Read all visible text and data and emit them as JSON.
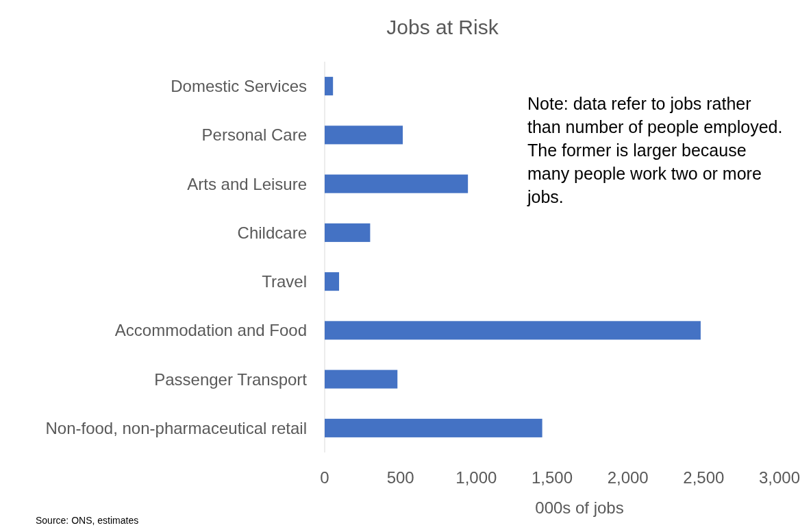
{
  "chart_data": {
    "type": "bar",
    "orientation": "horizontal",
    "title": "Jobs at Risk",
    "xlabel": "000s of jobs",
    "categories": [
      "Domestic Services",
      "Personal Care",
      "Arts and Leisure",
      "Childcare",
      "Travel",
      "Accommodation and Food",
      "Passenger Transport",
      "Non-food, non-pharmaceutical retail"
    ],
    "values": [
      55,
      515,
      945,
      300,
      95,
      2480,
      480,
      1435
    ],
    "color": "#4472c4",
    "xlim": [
      0,
      3000
    ],
    "xticks": [
      0,
      {
        "value": 500,
        "label": "500"
      },
      {
        "value": 1000,
        "label": "1,000"
      },
      {
        "value": 1500,
        "label": "1,500"
      },
      {
        "value": 2000,
        "label": "2,000"
      },
      {
        "value": 2500,
        "label": "2,500"
      },
      {
        "value": 3000,
        "label": "3,000"
      }
    ],
    "grid": false,
    "annotations": [
      "Note: data refer to jobs rather than number of people employed.  The former is larger because many people work two or more jobs.",
      "Source: ONS, estimates"
    ]
  }
}
